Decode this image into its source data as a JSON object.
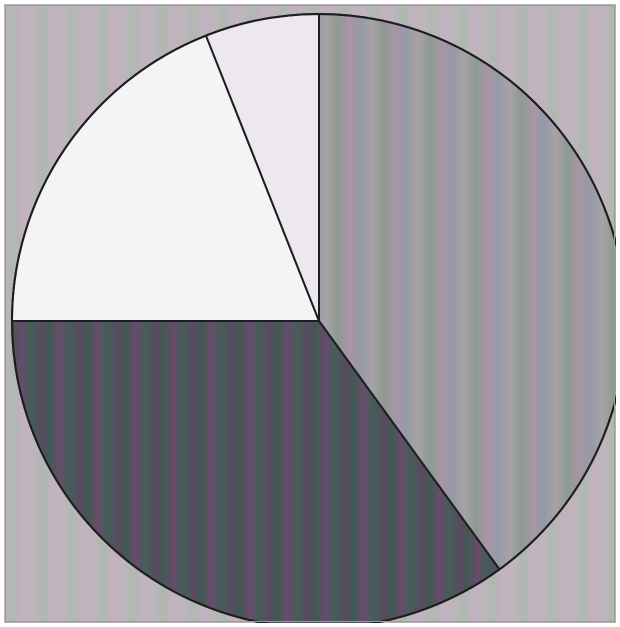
{
  "chart_data": {
    "type": "pie",
    "title": "",
    "values": [
      40,
      35,
      19,
      6
    ],
    "start_angle_deg": 0,
    "direction": "clockwise",
    "colors": [
      "#9c9a9e",
      "#54475c",
      "#f3f3f3",
      "#ece6ee"
    ],
    "background": "#b9b4ba",
    "legend": "none",
    "labels_shown": false
  }
}
